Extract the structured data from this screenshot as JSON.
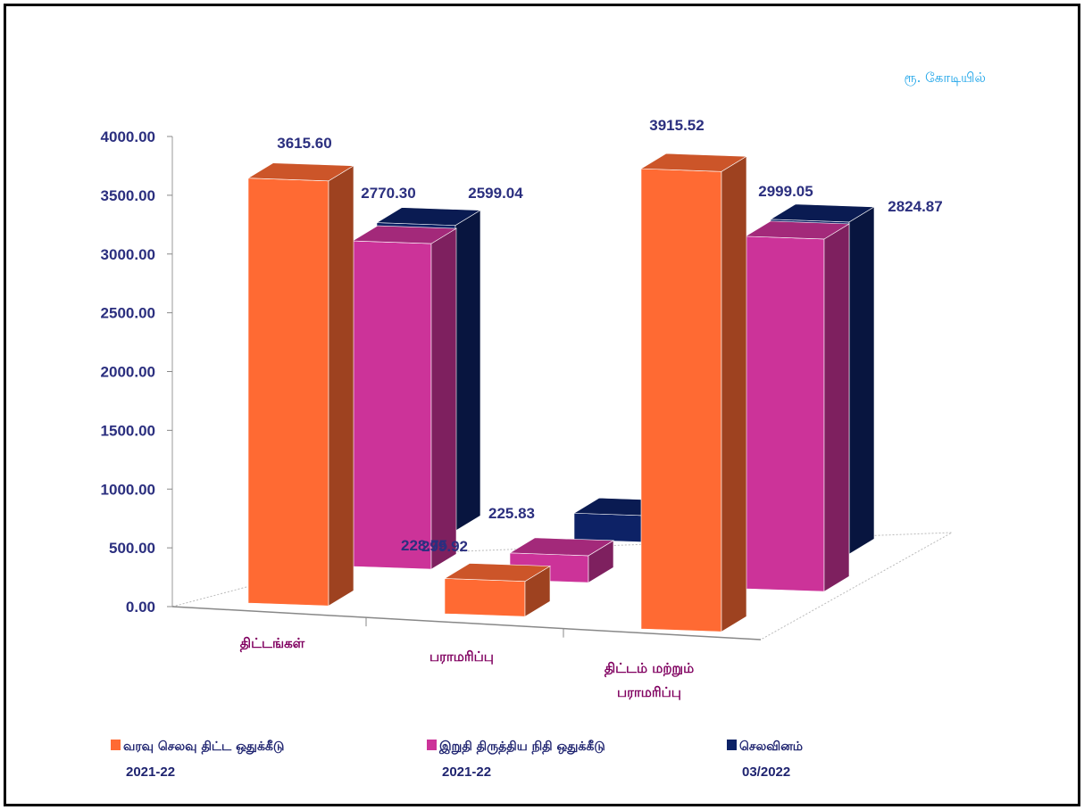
{
  "chart_data": {
    "type": "bar",
    "unit_label": "ரூ. கோடியில்",
    "categories": [
      "திட்டங்கள்",
      "பராமரிப்பு",
      "திட்டம் மற்றும் பராமரிப்பு"
    ],
    "category_lines": [
      [
        "திட்டங்கள்"
      ],
      [
        "பராமரிப்பு"
      ],
      [
        "திட்டம் மற்றும்",
        "பராமரிப்பு"
      ]
    ],
    "series": [
      {
        "name": "வரவு செலவு திட்ட ஒதுக்கீடு 2021-22",
        "name_lines": [
          "வரவு செலவு திட்ட ஒதுக்கீடு",
          "2021-22"
        ],
        "values": [
          3615.6,
          299.92,
          3915.52
        ],
        "labels": [
          "3615.60",
          "299.92",
          "3915.52"
        ],
        "color": "#ff6a33"
      },
      {
        "name": "இறுதி திருத்திய நிதி ஒதுக்கீடு 2021-22",
        "name_lines": [
          "இறுதி திருத்திய நிதி ஒதுக்கீடு",
          "2021-22"
        ],
        "values": [
          2770.3,
          228.75,
          2999.05
        ],
        "labels": [
          "2770.30",
          "228.75",
          "2999.05"
        ],
        "color": "#cc3399"
      },
      {
        "name": "செலவினம் 03/2022",
        "name_lines": [
          "செலவினம்",
          "03/2022"
        ],
        "values": [
          2599.04,
          225.83,
          2824.87
        ],
        "labels": [
          "2599.04",
          "225.83",
          "2824.87"
        ],
        "color": "#0d2266"
      }
    ],
    "y_ticks": [
      "0.00",
      "500.00",
      "1000.00",
      "1500.00",
      "2000.00",
      "2500.00",
      "3000.00",
      "3500.00",
      "4000.00"
    ],
    "ylim": [
      0,
      4000
    ],
    "legend_position": "bottom",
    "grid": false
  }
}
